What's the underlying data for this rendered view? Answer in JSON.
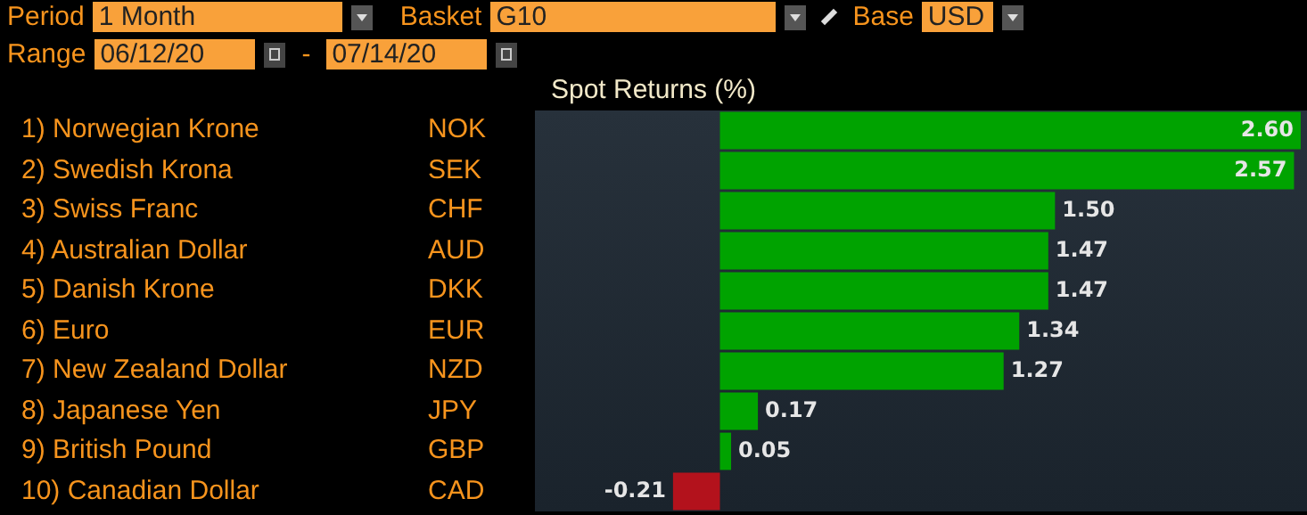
{
  "chart_data": {
    "type": "bar",
    "orientation": "horizontal",
    "title": "Spot Returns (%)",
    "annotations": [
      "Period",
      "1 Month",
      "Basket",
      "G10",
      "Base",
      "USD",
      "Range",
      "06/12/20",
      "-",
      "07/14/20"
    ],
    "categories": [
      "1) Norwegian Krone",
      "2) Swedish Krona",
      "3) Swiss Franc",
      "4) Australian Dollar",
      "5) Danish Krone",
      "6) Euro",
      "7) New Zealand Dollar",
      "8) Japanese Yen",
      "9) British Pound",
      "10) Canadian Dollar"
    ],
    "y2_categories": [
      "NOK",
      "SEK",
      "CHF",
      "AUD",
      "DKK",
      "EUR",
      "NZD",
      "JPY",
      "GBP",
      "CAD"
    ],
    "values": [
      2.6,
      2.57,
      1.5,
      1.47,
      1.47,
      1.34,
      1.27,
      0.17,
      0.05,
      -0.21
    ],
    "value_labels": [
      "2.60",
      "2.57",
      "1.50",
      "1.47",
      "1.47",
      "1.34",
      "1.27",
      "0.17",
      "0.05",
      "-0.21"
    ],
    "colors": [
      "#00a300",
      "#00a300",
      "#00a300",
      "#00a300",
      "#00a300",
      "#00a300",
      "#00a300",
      "#00a300",
      "#00a300",
      "#b3121c"
    ],
    "tick_labels": false,
    "legend": false
  }
}
